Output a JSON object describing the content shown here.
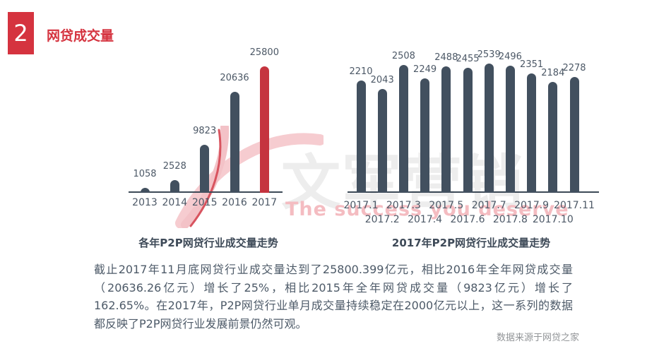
{
  "header": {
    "section_number": "2",
    "title": "网贷成交量"
  },
  "colors": {
    "accent_red": "#d5333f",
    "bar_highlight_red": "#c5343f",
    "bar_dark": "#42505f",
    "axis": "#3d4a57"
  },
  "watermark": {
    "brand": "文军营销",
    "tagline": "The success you deserve"
  },
  "chart_data": [
    {
      "type": "bar",
      "title": "各年P2P网贷行业成交量走势",
      "categories": [
        "2013",
        "2014",
        "2015",
        "2016",
        "2017"
      ],
      "values": [
        1058,
        2528,
        9823,
        20636,
        25800
      ],
      "highlight_index": 4,
      "ylim": [
        0,
        25800
      ],
      "grid": false,
      "legend": "none",
      "value_labels": true
    },
    {
      "type": "bar",
      "title": "2017年P2P网贷行业成交量走势",
      "categories": [
        "2017.1",
        "2017.2",
        "2017.3",
        "2017.4",
        "2017.5",
        "2017.6",
        "2017.7",
        "2017.8",
        "2017.9",
        "2017.10",
        "2017.11"
      ],
      "values": [
        2210,
        2043,
        2508,
        2249,
        2488,
        2455,
        2539,
        2496,
        2351,
        2184,
        2278
      ],
      "highlight_index": -1,
      "ylim": [
        0,
        2539
      ],
      "grid": false,
      "legend": "none",
      "value_labels": true
    }
  ],
  "body": {
    "text": "截止2017年11月底网贷行业成交量达到了25800.399亿元，相比2016年全年网贷成交量（20636.26亿元）增长了25%，相比2015年全年网贷成交量（9823亿元）增长了162.65%。在2017年，P2P网贷行业单月成交量持续稳定在2000亿元以上，这一系列的数据都反映了P2P网贷行业发展前景仍然可观。"
  },
  "footer": {
    "source_note": "数据来源于网贷之家"
  }
}
